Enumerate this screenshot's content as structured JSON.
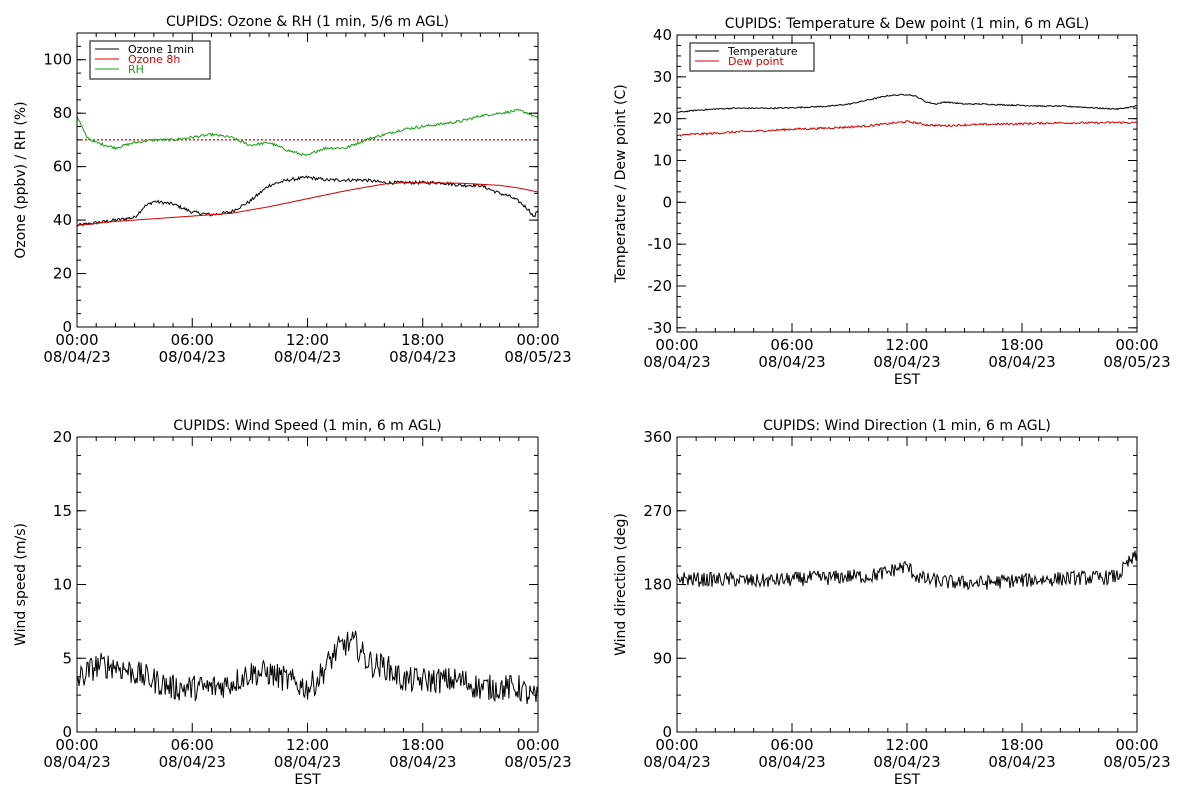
{
  "chart_data": [
    {
      "type": "line",
      "title": "CUPIDS: Ozone & RH (1 min, 5/6 m AGL)",
      "ylabel": "Ozone (ppbv) / RH (%)",
      "xlabel": "",
      "xlim": [
        0,
        24
      ],
      "ylim": [
        0,
        110
      ],
      "yticks": [
        0,
        20,
        40,
        60,
        80,
        100
      ],
      "xticks": [
        {
          "t1": "00:00",
          "t2": "08/04/23"
        },
        {
          "t1": "06:00",
          "t2": "08/04/23"
        },
        {
          "t1": "12:00",
          "t2": "08/04/23"
        },
        {
          "t1": "18:00",
          "t2": "08/04/23"
        },
        {
          "t1": "00:00",
          "t2": "08/05/23"
        }
      ],
      "legend_position": "top-left",
      "series": [
        {
          "name": "Ozone 1min",
          "color": "#000000",
          "noise": 0.6,
          "x": [
            0,
            1,
            2,
            3,
            3.5,
            4,
            5,
            6,
            7,
            8,
            9,
            10,
            11,
            12,
            13,
            14,
            15,
            16,
            17,
            18,
            19,
            20,
            21,
            22,
            22.5,
            23,
            23.5,
            23.8,
            24
          ],
          "y": [
            38,
            39,
            40,
            41,
            45,
            47,
            46,
            43,
            42,
            43,
            47,
            53,
            55,
            56,
            55,
            55,
            55,
            54,
            54,
            54,
            54,
            53,
            53,
            50,
            49,
            47,
            44,
            41,
            44
          ]
        },
        {
          "name": "Ozone 8h",
          "color": "#d40000",
          "noise": 0,
          "x": [
            0,
            2,
            4,
            6,
            8,
            10,
            12,
            14,
            16,
            17,
            18,
            20,
            22,
            23,
            24
          ],
          "y": [
            38,
            39.5,
            40.5,
            41.5,
            42.5,
            45,
            48,
            51,
            53.5,
            54,
            54,
            53.8,
            53,
            52,
            50.5
          ]
        },
        {
          "name": "RH",
          "color": "#1a9e1a",
          "noise": 0.5,
          "x": [
            0,
            0.5,
            1,
            2,
            3,
            4,
            5,
            6,
            7,
            8,
            9,
            10,
            11,
            12,
            12.5,
            13,
            14,
            15,
            16,
            17,
            18,
            19,
            20,
            21,
            22,
            23,
            23.5,
            24
          ],
          "y": [
            79,
            71,
            69,
            67,
            69,
            70,
            70,
            71,
            72,
            71,
            68,
            69,
            66,
            64,
            66,
            67,
            67,
            70,
            72,
            74,
            75,
            76,
            77,
            79,
            80,
            81,
            80,
            78
          ]
        }
      ],
      "reference_line": {
        "y": 70,
        "color": "#d40000"
      }
    },
    {
      "type": "line",
      "title": "CUPIDS: Temperature & Dew point (1 min, 6 m AGL)",
      "ylabel": "Temperature / Dew point (C)",
      "xlabel": "EST",
      "xlim": [
        0,
        24
      ],
      "ylim": [
        -31,
        40
      ],
      "yticks": [
        -30,
        -20,
        -10,
        0,
        10,
        20,
        30,
        40
      ],
      "xticks": [
        {
          "t1": "00:00",
          "t2": "08/04/23"
        },
        {
          "t1": "06:00",
          "t2": "08/04/23"
        },
        {
          "t1": "12:00",
          "t2": "08/04/23"
        },
        {
          "t1": "18:00",
          "t2": "08/04/23"
        },
        {
          "t1": "00:00",
          "t2": "08/05/23"
        }
      ],
      "legend_position": "top-left",
      "series": [
        {
          "name": "Temperature",
          "color": "#000000",
          "noise": 0.15,
          "x": [
            0,
            1,
            2,
            3,
            4,
            5,
            6,
            7,
            8,
            9,
            10,
            11,
            12,
            12.5,
            13,
            13.5,
            14,
            15,
            16,
            17,
            18,
            19,
            20,
            21,
            22,
            23,
            24
          ],
          "y": [
            21.5,
            22,
            22.3,
            22.5,
            22.5,
            22.5,
            22.6,
            22.8,
            23,
            23.5,
            24.5,
            25.5,
            25.8,
            25.3,
            24,
            23.5,
            24,
            23.5,
            23.5,
            23.3,
            23.2,
            23,
            23,
            22.8,
            22.5,
            22.3,
            23
          ]
        },
        {
          "name": "Dew point",
          "color": "#d40000",
          "noise": 0.25,
          "x": [
            0,
            1,
            2,
            3,
            4,
            5,
            6,
            7,
            8,
            9,
            10,
            11,
            12,
            12.5,
            13,
            14,
            15,
            16,
            17,
            18,
            19,
            20,
            21,
            22,
            23,
            24
          ],
          "y": [
            16,
            16.3,
            16.5,
            16.8,
            17,
            17.2,
            17.5,
            17.6,
            17.8,
            18,
            18.3,
            18.8,
            19.3,
            19,
            18.5,
            18.3,
            18.5,
            18.6,
            18.7,
            18.8,
            18.9,
            19,
            19,
            19,
            19.1,
            19
          ]
        }
      ]
    },
    {
      "type": "line",
      "title": "CUPIDS: Wind Speed (1 min, 6 m AGL)",
      "ylabel": "Wind speed (m/s)",
      "xlabel": "EST",
      "xlim": [
        0,
        24
      ],
      "ylim": [
        0,
        20
      ],
      "yticks": [
        0,
        5,
        10,
        15,
        20
      ],
      "xticks": [
        {
          "t1": "00:00",
          "t2": "08/04/23"
        },
        {
          "t1": "06:00",
          "t2": "08/04/23"
        },
        {
          "t1": "12:00",
          "t2": "08/04/23"
        },
        {
          "t1": "18:00",
          "t2": "08/04/23"
        },
        {
          "t1": "00:00",
          "t2": "08/05/23"
        }
      ],
      "series": [
        {
          "name": "",
          "color": "#000000",
          "noise": 0.9,
          "x": [
            0,
            1,
            2,
            3,
            4,
            5,
            6,
            7,
            8,
            9,
            10,
            11,
            12,
            12.5,
            13,
            13.5,
            14,
            14.5,
            15,
            15.5,
            16,
            17,
            18,
            19,
            20,
            21,
            22,
            23,
            23.5,
            24
          ],
          "y": [
            3.5,
            4.5,
            4.5,
            4,
            3.5,
            3,
            3,
            3,
            3.3,
            4,
            4,
            3.5,
            3,
            3.5,
            4.5,
            5.5,
            6,
            6,
            5,
            4.5,
            4.5,
            3.5,
            3.5,
            3.5,
            3.5,
            3,
            3,
            3,
            2.5,
            2.2
          ]
        }
      ]
    },
    {
      "type": "line",
      "title": "CUPIDS: Wind Direction (1 min, 6 m AGL)",
      "ylabel": "Wind direction (deg)",
      "xlabel": "EST",
      "xlim": [
        0,
        24
      ],
      "ylim": [
        0,
        360
      ],
      "yticks": [
        0,
        90,
        180,
        270,
        360
      ],
      "xticks": [
        {
          "t1": "00:00",
          "t2": "08/04/23"
        },
        {
          "t1": "06:00",
          "t2": "08/04/23"
        },
        {
          "t1": "12:00",
          "t2": "08/04/23"
        },
        {
          "t1": "18:00",
          "t2": "08/04/23"
        },
        {
          "t1": "00:00",
          "t2": "08/05/23"
        }
      ],
      "series": [
        {
          "name": "",
          "color": "#000000",
          "noise": 9,
          "x": [
            0,
            1,
            2,
            3,
            4,
            5,
            6,
            7,
            8,
            9,
            10,
            11,
            11.5,
            12,
            12.5,
            13,
            14,
            15,
            16,
            17,
            18,
            19,
            20,
            21,
            22,
            23,
            23.5,
            24
          ],
          "y": [
            188,
            186,
            186,
            186,
            184,
            185,
            186,
            188,
            188,
            190,
            190,
            195,
            200,
            202,
            190,
            186,
            183,
            182,
            182,
            184,
            185,
            186,
            187,
            188,
            188,
            190,
            205,
            215
          ]
        }
      ]
    }
  ]
}
